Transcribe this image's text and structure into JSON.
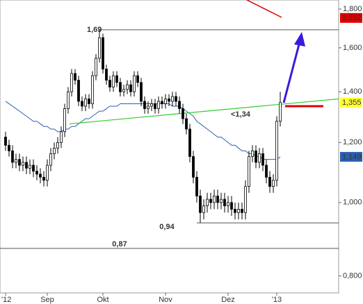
{
  "chart_data": {
    "type": "candlestick",
    "categories": [
      "'12",
      null,
      null,
      null,
      null,
      null,
      null,
      null,
      null,
      null,
      null,
      null,
      "Sep",
      null,
      null,
      null,
      null,
      null,
      null,
      null,
      null,
      null,
      null,
      null,
      null,
      null,
      null,
      null,
      "Okt",
      null,
      null,
      null,
      null,
      null,
      null,
      null,
      null,
      null,
      null,
      null,
      null,
      null,
      null,
      null,
      null,
      null,
      "Nov",
      null,
      null,
      null,
      null,
      null,
      null,
      null,
      null,
      null,
      null,
      null,
      null,
      null,
      null,
      null,
      null,
      null,
      "Dez",
      null,
      null,
      null,
      null,
      null,
      null,
      null,
      null,
      null,
      null,
      null,
      null,
      null,
      "'13",
      null
    ],
    "open": [
      1.22,
      1.19,
      1.17,
      1.13,
      1.14,
      1.12,
      1.13,
      1.11,
      1.12,
      1.1,
      1.09,
      1.08,
      1.07,
      1.12,
      1.16,
      1.18,
      1.2,
      1.24,
      1.33,
      1.4,
      1.48,
      1.45,
      1.36,
      1.34,
      1.37,
      1.35,
      1.47,
      1.55,
      1.65,
      1.5,
      1.45,
      1.42,
      1.47,
      1.44,
      1.4,
      1.41,
      1.43,
      1.4,
      1.47,
      1.44,
      1.36,
      1.33,
      1.34,
      1.35,
      1.33,
      1.36,
      1.35,
      1.37,
      1.36,
      1.38,
      1.36,
      1.33,
      1.29,
      1.25,
      1.15,
      1.08,
      1.02,
      0.97,
      0.99,
      1.01,
      1.0,
      1.02,
      1.0,
      1.01,
      0.99,
      1.0,
      0.98,
      0.97,
      0.98,
      0.97,
      1.05,
      1.15,
      1.17,
      1.13,
      1.16,
      1.12,
      1.08,
      1.05,
      1.07,
      1.28
    ],
    "high": [
      1.24,
      1.21,
      1.19,
      1.16,
      1.16,
      1.15,
      1.15,
      1.14,
      1.14,
      1.12,
      1.11,
      1.1,
      1.14,
      1.18,
      1.2,
      1.22,
      1.26,
      1.35,
      1.42,
      1.5,
      1.5,
      1.47,
      1.38,
      1.39,
      1.39,
      1.49,
      1.57,
      1.69,
      1.67,
      1.52,
      1.47,
      1.49,
      1.49,
      1.46,
      1.43,
      1.45,
      1.45,
      1.49,
      1.49,
      1.46,
      1.38,
      1.36,
      1.37,
      1.37,
      1.38,
      1.38,
      1.39,
      1.39,
      1.4,
      1.4,
      1.38,
      1.35,
      1.31,
      1.27,
      1.17,
      1.1,
      1.04,
      1.01,
      1.03,
      1.03,
      1.04,
      1.04,
      1.03,
      1.03,
      1.02,
      1.02,
      1.0,
      1.0,
      1.0,
      1.07,
      1.17,
      1.19,
      1.19,
      1.18,
      1.18,
      1.14,
      1.1,
      1.09,
      1.3,
      1.4
    ],
    "low": [
      1.17,
      1.15,
      1.11,
      1.11,
      1.1,
      1.1,
      1.09,
      1.09,
      1.08,
      1.07,
      1.06,
      1.05,
      1.05,
      1.1,
      1.14,
      1.16,
      1.18,
      1.22,
      1.31,
      1.38,
      1.43,
      1.34,
      1.32,
      1.32,
      1.33,
      1.33,
      1.45,
      1.53,
      1.48,
      1.43,
      1.4,
      1.4,
      1.42,
      1.38,
      1.38,
      1.39,
      1.38,
      1.38,
      1.42,
      1.34,
      1.31,
      1.31,
      1.32,
      1.31,
      1.31,
      1.33,
      1.33,
      1.34,
      1.34,
      1.34,
      1.31,
      1.27,
      1.23,
      1.13,
      1.06,
      1.0,
      0.94,
      0.95,
      0.97,
      0.98,
      0.98,
      0.98,
      0.98,
      0.97,
      0.97,
      0.96,
      0.95,
      0.95,
      0.95,
      0.95,
      1.03,
      1.13,
      1.11,
      1.11,
      1.1,
      1.06,
      1.03,
      1.03,
      1.05,
      1.26
    ],
    "close": [
      1.19,
      1.17,
      1.13,
      1.14,
      1.12,
      1.13,
      1.11,
      1.12,
      1.1,
      1.09,
      1.08,
      1.07,
      1.12,
      1.16,
      1.18,
      1.2,
      1.24,
      1.33,
      1.4,
      1.48,
      1.45,
      1.36,
      1.34,
      1.37,
      1.35,
      1.47,
      1.55,
      1.65,
      1.5,
      1.45,
      1.42,
      1.47,
      1.44,
      1.4,
      1.41,
      1.43,
      1.4,
      1.47,
      1.44,
      1.36,
      1.33,
      1.34,
      1.35,
      1.33,
      1.36,
      1.35,
      1.37,
      1.36,
      1.38,
      1.36,
      1.33,
      1.29,
      1.25,
      1.15,
      1.08,
      1.02,
      0.97,
      0.99,
      1.01,
      1.0,
      1.02,
      1.0,
      1.01,
      0.99,
      1.0,
      0.98,
      0.97,
      0.98,
      0.97,
      1.05,
      1.15,
      1.17,
      1.13,
      1.16,
      1.12,
      1.08,
      1.05,
      1.07,
      1.28,
      1.355
    ],
    "moving_average": {
      "color": "#2a5fb0",
      "values": [
        1.36,
        1.35,
        1.34,
        1.33,
        1.32,
        1.31,
        1.3,
        1.29,
        1.28,
        1.28,
        1.27,
        1.26,
        1.26,
        1.25,
        1.25,
        1.24,
        1.24,
        1.25,
        1.25,
        1.26,
        1.26,
        1.27,
        1.28,
        1.29,
        1.29,
        1.3,
        1.31,
        1.32,
        1.32,
        1.33,
        1.34,
        1.34,
        1.34,
        1.35,
        1.35,
        1.35,
        1.35,
        1.35,
        1.35,
        1.35,
        1.35,
        1.35,
        1.35,
        1.35,
        1.35,
        1.35,
        1.35,
        1.35,
        1.34,
        1.34,
        1.34,
        1.33,
        1.32,
        1.31,
        1.3,
        1.28,
        1.27,
        1.26,
        1.25,
        1.24,
        1.23,
        1.22,
        1.22,
        1.21,
        1.2,
        1.19,
        1.19,
        1.18,
        1.17,
        1.17,
        1.16,
        1.16,
        1.15,
        1.15,
        1.14,
        1.14,
        1.14,
        1.14,
        1.14,
        1.149
      ]
    },
    "ylim": [
      0.76,
      1.85
    ],
    "log_scale": true,
    "yticks": [
      {
        "value": 0.8,
        "label": "0,800"
      },
      {
        "value": 1.0,
        "label": "1,000"
      },
      {
        "value": 1.2,
        "label": "1,200"
      },
      {
        "value": 1.4,
        "label": "1,400"
      },
      {
        "value": 1.6,
        "label": "1,600"
      },
      {
        "value": 1.8,
        "label": "1,800"
      }
    ],
    "levels": [
      {
        "value": 1.69,
        "label": "1,69"
      },
      {
        "value": 0.94,
        "label": "0,94"
      },
      {
        "value": 0.87,
        "label": "0,87"
      }
    ],
    "trendline": {
      "values": [
        1.27,
        1.37
      ],
      "color": "#33cc33"
    },
    "target": {
      "value": 1.34,
      "label": "<1,34",
      "color": "#e00000"
    },
    "price_labels": [
      {
        "value": 1.752,
        "label": "1,752",
        "color": "#e00000",
        "text_color": "#ffffff"
      },
      {
        "value": 1.355,
        "label": "1,355",
        "color": "#ffff33",
        "text_color": "#000000"
      },
      {
        "value": 1.149,
        "label": "1,149",
        "color": "#2a5fb0",
        "text_color": "#ffffff"
      }
    ]
  }
}
